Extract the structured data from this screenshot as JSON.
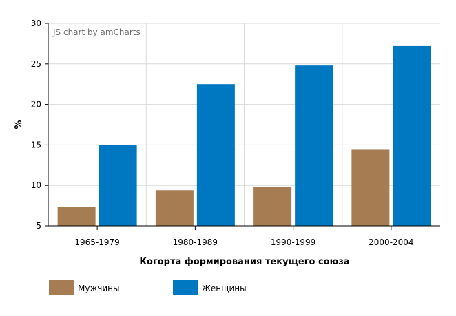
{
  "credit": "JS chart by amCharts",
  "colors": {
    "men": "#A67C52",
    "women": "#0078C1",
    "grid": "#d9d9d9",
    "axis": "#000000"
  },
  "chart_data": {
    "type": "bar",
    "title": "",
    "xlabel": "Когорта формирования текущего союза",
    "ylabel": "%",
    "ylim": [
      5,
      30
    ],
    "yticks": [
      5,
      10,
      15,
      20,
      25,
      30
    ],
    "grid": true,
    "legend_position": "bottom",
    "categories": [
      "1965-1979",
      "1980-1989",
      "1990-1999",
      "2000-2004"
    ],
    "series": [
      {
        "name": "Мужчины",
        "values": [
          7.3,
          9.4,
          9.8,
          14.4
        ]
      },
      {
        "name": "Женщины",
        "values": [
          15.0,
          22.5,
          24.8,
          27.2
        ]
      }
    ]
  }
}
